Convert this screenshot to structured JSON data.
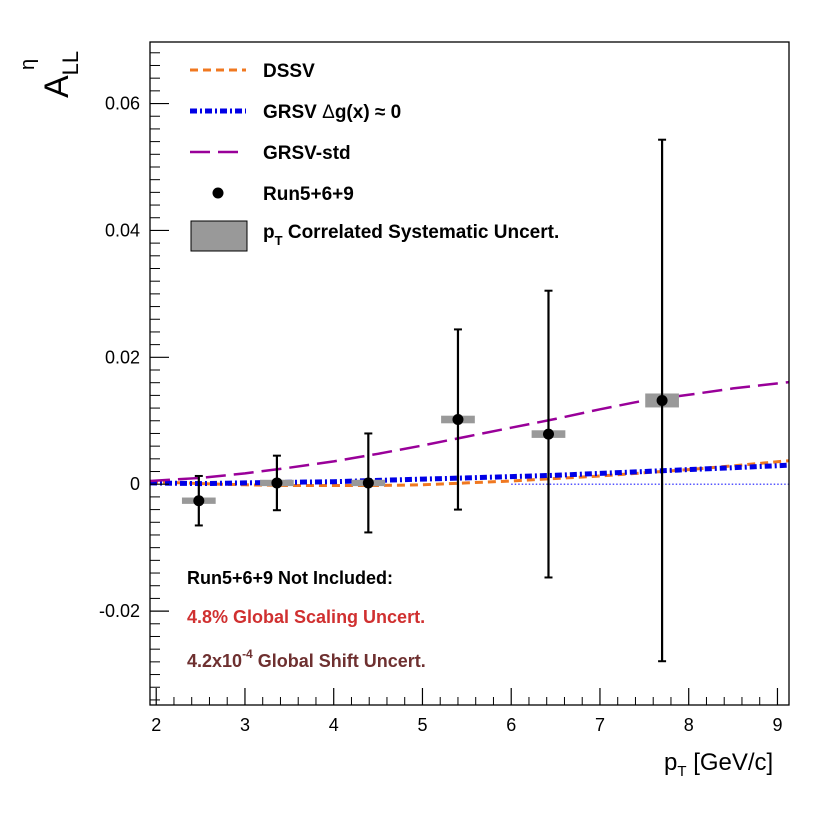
{
  "chart_data": {
    "type": "scatter",
    "title": "",
    "xlabel": {
      "main": "p",
      "sub": "T",
      "rest": " [GeV/c]"
    },
    "ylabel": {
      "main": "A",
      "sup": "η",
      "sub": "LL"
    },
    "xlim": [
      1.93,
      9.13
    ],
    "ylim": [
      -0.0348,
      0.0697
    ],
    "x_ticks": [
      "2",
      "3",
      "4",
      "5",
      "6",
      "7",
      "8",
      "9"
    ],
    "y_ticks": [
      "-0.02",
      "0",
      "0.02",
      "0.04",
      "0.06"
    ],
    "legend": {
      "position": "top-left",
      "entries": {
        "dssv": "DSSV",
        "grsv0_pre": "GRSV ",
        "grsv0_delta": "Δ",
        "grsv0_post": "g(x) ≈ 0",
        "grsvstd": "GRSV-std",
        "run": "Run5+6+9",
        "syst_pre": "p",
        "syst_sub": "T",
        "syst_post": " Correlated Systematic Uncert."
      }
    },
    "annotations": {
      "line1": "Run5+6+9 Not Included:",
      "line2": "4.8% Global Scaling Uncert.",
      "line3_pre": "4.2x10",
      "line3_sup": "-4",
      "line3_post": " Global Shift Uncert."
    },
    "colors": {
      "dssv": "#f07820",
      "grsv0": "#0000e6",
      "grsvstd": "#990099",
      "syst": "#999999",
      "note_red": "#d03030",
      "note_brown": "#6e3030",
      "zero_line": "#1a1aff"
    },
    "series": [
      {
        "name": "Run5+6+9",
        "points": [
          {
            "x": 2.48,
            "y": -0.0026,
            "err": 0.0039,
            "sys_halfwidth": 0.19,
            "sys_err": 0.0005
          },
          {
            "x": 3.36,
            "y": 0.0002,
            "err": 0.0043,
            "sys_halfwidth": 0.19,
            "sys_err": 0.0005
          },
          {
            "x": 4.39,
            "y": 0.0002,
            "err": 0.0078,
            "sys_halfwidth": 0.19,
            "sys_err": 0.0005
          },
          {
            "x": 5.4,
            "y": 0.0102,
            "err": 0.0142,
            "sys_halfwidth": 0.19,
            "sys_err": 0.0006
          },
          {
            "x": 6.42,
            "y": 0.0079,
            "err": 0.0226,
            "sys_halfwidth": 0.19,
            "sys_err": 0.0006
          },
          {
            "x": 7.7,
            "y": 0.0132,
            "err": 0.0411,
            "sys_halfwidth": 0.19,
            "sys_err": 0.0011
          }
        ]
      },
      {
        "name": "DSSV",
        "curve": [
          [
            1.93,
            0.0004
          ],
          [
            2.5,
            0.0001
          ],
          [
            3.0,
            -0.0001
          ],
          [
            3.5,
            -0.0002
          ],
          [
            4.0,
            -0.0002
          ],
          [
            4.5,
            -0.0002
          ],
          [
            5.0,
            -0.0001
          ],
          [
            5.5,
            0.0002
          ],
          [
            6.0,
            0.0005
          ],
          [
            6.5,
            0.0009
          ],
          [
            7.0,
            0.0013
          ],
          [
            7.5,
            0.0018
          ],
          [
            8.0,
            0.0023
          ],
          [
            8.5,
            0.0029
          ],
          [
            9.13,
            0.0037
          ]
        ]
      },
      {
        "name": "GRSV dg=0",
        "curve": [
          [
            1.93,
            0.0002
          ],
          [
            2.5,
            0.0001
          ],
          [
            3.0,
            0.0002
          ],
          [
            3.5,
            0.0003
          ],
          [
            4.0,
            0.0004
          ],
          [
            4.5,
            0.0006
          ],
          [
            5.0,
            0.0008
          ],
          [
            5.5,
            0.001
          ],
          [
            6.0,
            0.0012
          ],
          [
            6.5,
            0.0014
          ],
          [
            7.0,
            0.0017
          ],
          [
            7.5,
            0.002
          ],
          [
            8.0,
            0.0023
          ],
          [
            8.5,
            0.0026
          ],
          [
            9.13,
            0.003
          ]
        ]
      },
      {
        "name": "GRSV-std",
        "curve": [
          [
            1.93,
            0.0005
          ],
          [
            2.5,
            0.001
          ],
          [
            3.0,
            0.0017
          ],
          [
            3.5,
            0.0026
          ],
          [
            4.0,
            0.0036
          ],
          [
            4.5,
            0.0048
          ],
          [
            5.0,
            0.0061
          ],
          [
            5.5,
            0.0075
          ],
          [
            6.0,
            0.0089
          ],
          [
            6.5,
            0.0103
          ],
          [
            7.0,
            0.0118
          ],
          [
            7.5,
            0.0132
          ],
          [
            8.0,
            0.0141
          ],
          [
            8.5,
            0.0151
          ],
          [
            9.13,
            0.0161
          ]
        ]
      }
    ]
  }
}
